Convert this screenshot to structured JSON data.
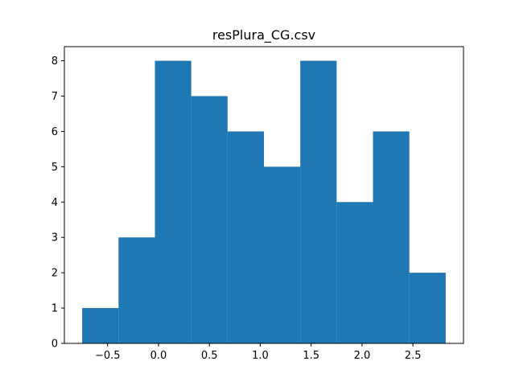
{
  "chart_data": {
    "type": "bar",
    "title": "resPlura_CG.csv",
    "xlabel": "",
    "ylabel": "",
    "bin_edges": [
      -0.75,
      -0.3928,
      -0.0356,
      0.3216,
      0.6788,
      1.036,
      1.3932,
      1.7504,
      2.1076,
      2.4648,
      2.822
    ],
    "values": [
      1,
      3,
      8,
      7,
      6,
      5,
      8,
      4,
      6,
      2
    ],
    "xlim": [
      -0.925,
      2.997
    ],
    "ylim": [
      0,
      8.4
    ],
    "xticks": [
      -0.5,
      0.0,
      0.5,
      1.0,
      1.5,
      2.0,
      2.5
    ],
    "xtick_labels": [
      "−0.5",
      "0.0",
      "0.5",
      "1.0",
      "1.5",
      "2.0",
      "2.5"
    ],
    "yticks": [
      0,
      1,
      2,
      3,
      4,
      5,
      6,
      7,
      8
    ],
    "ytick_labels": [
      "0",
      "1",
      "2",
      "3",
      "4",
      "5",
      "6",
      "7",
      "8"
    ],
    "grid": false,
    "colors": {
      "bar": "#1f77b4",
      "axis": "#000000",
      "background": "#ffffff"
    }
  }
}
